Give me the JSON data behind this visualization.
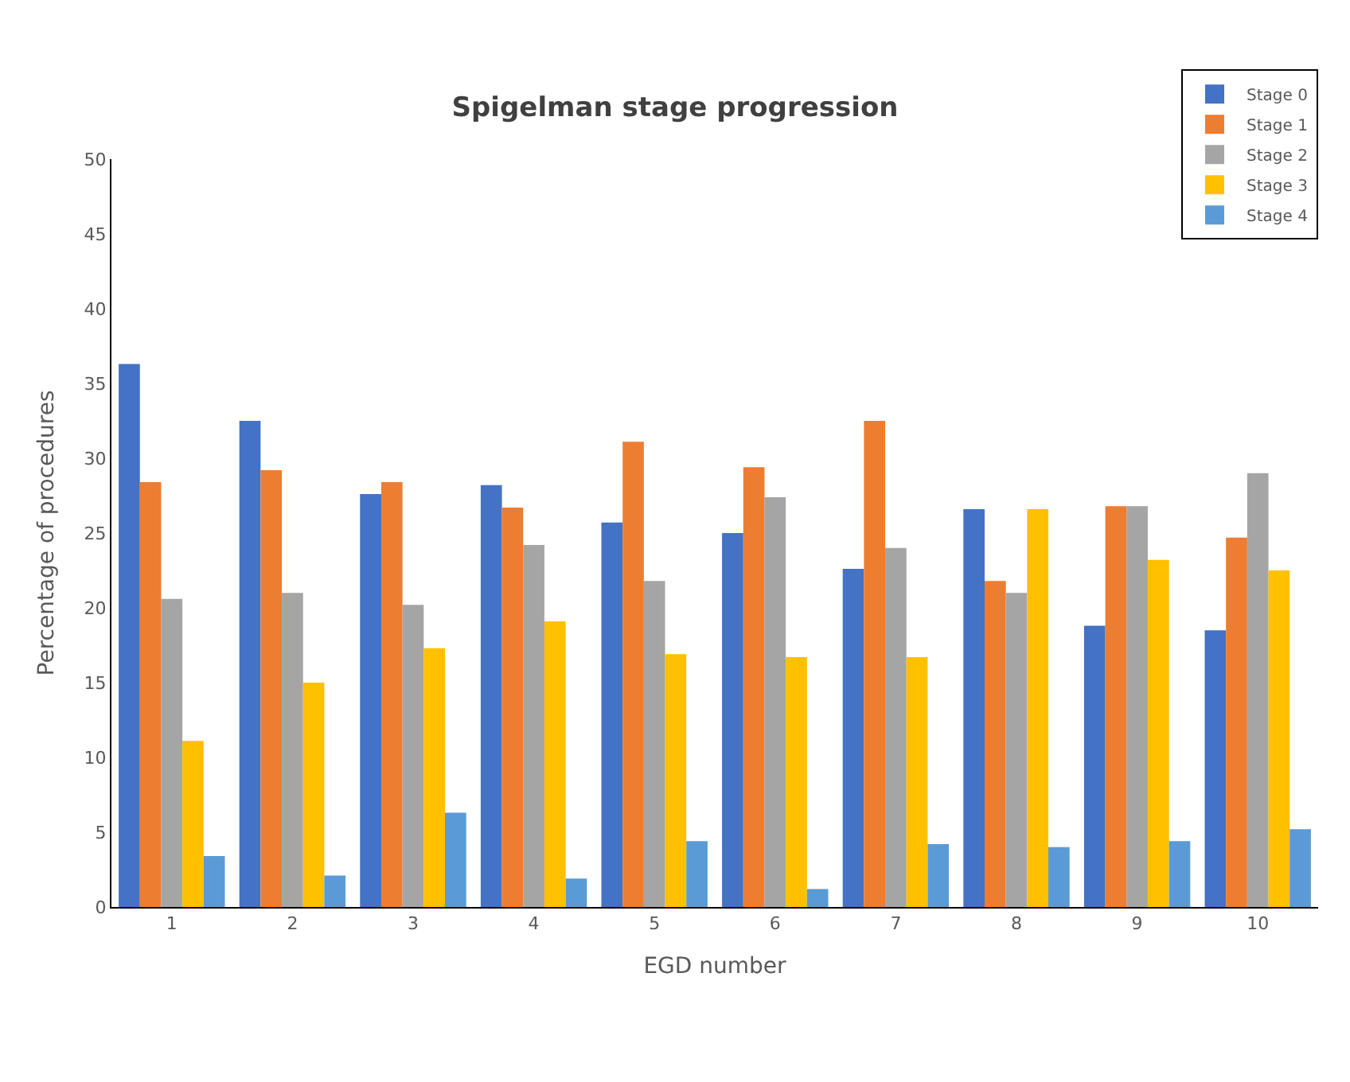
{
  "chart_data": {
    "type": "bar",
    "title": "Spigelman stage progression",
    "xlabel": "EGD number",
    "ylabel": "Percentage of procedures",
    "categories": [
      "1",
      "2",
      "3",
      "4",
      "5",
      "6",
      "7",
      "8",
      "9",
      "10"
    ],
    "series": [
      {
        "name": "Stage 0",
        "color": "#4472c4",
        "values": [
          36.3,
          32.5,
          27.6,
          28.2,
          25.7,
          25.0,
          22.6,
          26.6,
          18.8,
          18.5
        ]
      },
      {
        "name": "Stage 1",
        "color": "#ed7d31",
        "values": [
          28.4,
          29.2,
          28.4,
          26.7,
          31.1,
          29.4,
          32.5,
          21.8,
          26.8,
          24.7
        ]
      },
      {
        "name": "Stage 2",
        "color": "#a5a5a5",
        "values": [
          20.6,
          21.0,
          20.2,
          24.2,
          21.8,
          27.4,
          24.0,
          21.0,
          26.8,
          29.0
        ]
      },
      {
        "name": "Stage 3",
        "color": "#ffc000",
        "values": [
          11.1,
          15.0,
          17.3,
          19.1,
          16.9,
          16.7,
          16.7,
          26.6,
          23.2,
          22.5
        ]
      },
      {
        "name": "Stage 4",
        "color": "#5b9bd5",
        "values": [
          3.4,
          2.1,
          6.3,
          1.9,
          4.4,
          1.2,
          4.2,
          4.0,
          4.4,
          5.2
        ]
      }
    ],
    "ylim": [
      0,
      50
    ],
    "yticks": [
      0,
      5,
      10,
      15,
      20,
      25,
      30,
      35,
      40,
      45,
      50
    ],
    "legend": "top right"
  }
}
